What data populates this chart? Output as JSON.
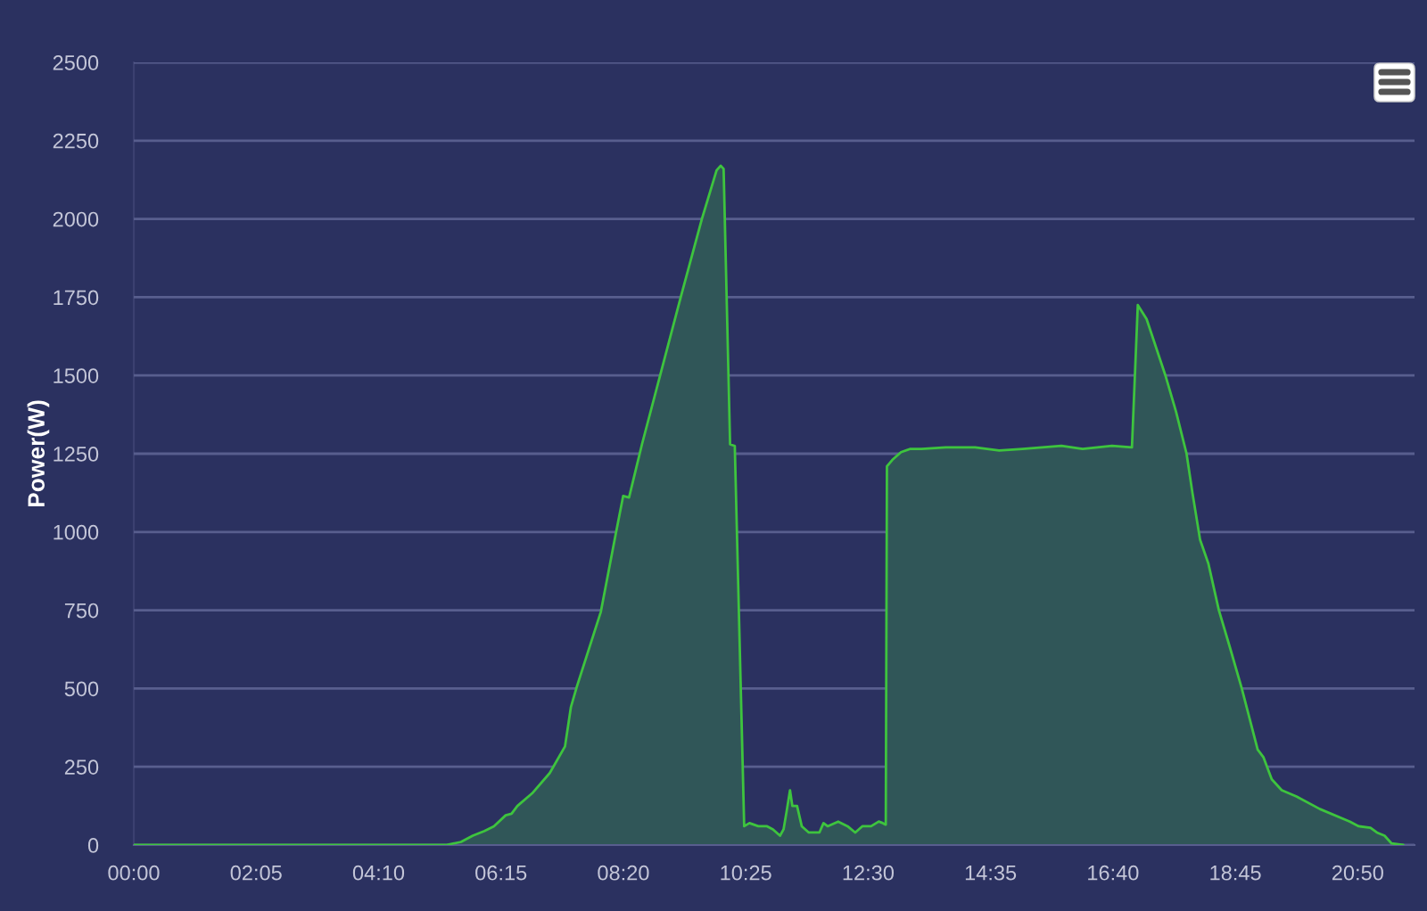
{
  "chart_data": {
    "type": "area",
    "ylabel": "Power(W)",
    "x": [
      0,
      5.31,
      5.57,
      5.77,
      5.97,
      6.13,
      6.33,
      6.43,
      6.53,
      6.78,
      7.08,
      7.34,
      7.44,
      7.54,
      7.95,
      8.2,
      8.33,
      8.43,
      8.65,
      9.31,
      9.67,
      9.92,
      9.99,
      10.04,
      10.15,
      10.23,
      10.39,
      10.48,
      10.63,
      10.78,
      10.88,
      11.0,
      11.06,
      11.11,
      11.17,
      11.21,
      11.29,
      11.37,
      11.49,
      11.67,
      11.74,
      11.81,
      11.99,
      12.15,
      12.28,
      12.4,
      12.55,
      12.68,
      12.75,
      12.8,
      12.82,
      12.91,
      13.06,
      13.21,
      13.41,
      13.82,
      14.32,
      14.73,
      15.13,
      15.79,
      16.15,
      16.65,
      16.99,
      17.09,
      17.24,
      17.56,
      17.74,
      17.92,
      18.02,
      18.15,
      18.29,
      18.47,
      18.66,
      18.86,
      19.13,
      19.23,
      19.37,
      19.54,
      19.79,
      20.19,
      20.7,
      20.85,
      21.05,
      21.16,
      21.29,
      21.41,
      21.61
    ],
    "values": [
      0,
      0,
      10,
      30,
      45,
      60,
      95,
      100,
      125,
      165,
      230,
      315,
      440,
      505,
      745,
      990,
      1115,
      1110,
      1280,
      1750,
      2000,
      2155,
      2170,
      2160,
      1280,
      1275,
      60,
      70,
      60,
      60,
      50,
      30,
      50,
      105,
      175,
      125,
      125,
      60,
      40,
      40,
      70,
      60,
      75,
      60,
      40,
      60,
      60,
      75,
      70,
      65,
      1210,
      1230,
      1255,
      1265,
      1265,
      1270,
      1270,
      1260,
      1265,
      1275,
      1265,
      1275,
      1270,
      1725,
      1680,
      1500,
      1385,
      1250,
      1125,
      975,
      900,
      750,
      630,
      500,
      305,
      280,
      210,
      175,
      155,
      115,
      75,
      60,
      55,
      40,
      30,
      5,
      0
    ],
    "color": "#3ec43e",
    "xlim": [
      0,
      21.8
    ],
    "xticks": [
      {
        "value": 0,
        "label": "00:00"
      },
      {
        "value": 2.0833,
        "label": "02:05"
      },
      {
        "value": 4.1667,
        "label": "04:10"
      },
      {
        "value": 6.25,
        "label": "06:15"
      },
      {
        "value": 8.3333,
        "label": "08:20"
      },
      {
        "value": 10.4167,
        "label": "10:25"
      },
      {
        "value": 12.5,
        "label": "12:30"
      },
      {
        "value": 14.5833,
        "label": "14:35"
      },
      {
        "value": 16.6667,
        "label": "16:40"
      },
      {
        "value": 18.75,
        "label": "18:45"
      },
      {
        "value": 20.8333,
        "label": "20:50"
      }
    ],
    "ylim": [
      0,
      2500
    ],
    "yticks": [
      0,
      250,
      500,
      750,
      1000,
      1250,
      1500,
      1750,
      2000,
      2250,
      2500
    ],
    "grid": "y"
  }
}
